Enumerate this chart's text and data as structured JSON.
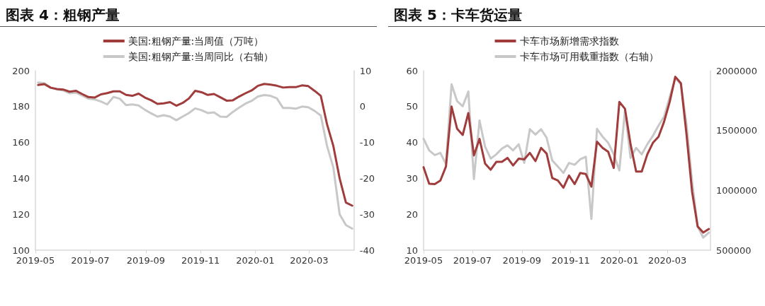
{
  "chart_data": [
    {
      "type": "line",
      "title": "图表 4：粗钢产量",
      "xlim": [
        "2019-05-01",
        "2020-04-20"
      ],
      "xticks": [
        "2019-05",
        "2019-07",
        "2019-09",
        "2019-11",
        "2020-01",
        "2020-03"
      ],
      "ylim": [
        100,
        200
      ],
      "yticks": [
        100,
        120,
        140,
        160,
        180,
        200
      ],
      "y2lim": [
        -40,
        10
      ],
      "y2ticks": [
        -40,
        -30,
        -20,
        -10,
        0,
        10
      ],
      "grid": false,
      "legend": "top",
      "marker": "none",
      "line_style": "solid",
      "x": [
        "2019-05-04",
        "2019-05-11",
        "2019-05-18",
        "2019-05-25",
        "2019-06-01",
        "2019-06-08",
        "2019-06-15",
        "2019-06-22",
        "2019-06-29",
        "2019-07-06",
        "2019-07-13",
        "2019-07-20",
        "2019-07-27",
        "2019-08-03",
        "2019-08-10",
        "2019-08-17",
        "2019-08-24",
        "2019-08-31",
        "2019-09-07",
        "2019-09-14",
        "2019-09-21",
        "2019-09-28",
        "2019-10-05",
        "2019-10-12",
        "2019-10-19",
        "2019-10-26",
        "2019-11-02",
        "2019-11-09",
        "2019-11-16",
        "2019-11-23",
        "2019-11-30",
        "2019-12-07",
        "2019-12-14",
        "2019-12-21",
        "2019-12-28",
        "2020-01-04",
        "2020-01-11",
        "2020-01-18",
        "2020-01-25",
        "2020-02-01",
        "2020-02-08",
        "2020-02-15",
        "2020-02-22",
        "2020-02-29",
        "2020-03-07",
        "2020-03-14",
        "2020-03-21",
        "2020-03-28",
        "2020-04-04",
        "2020-04-11",
        "2020-04-18"
      ],
      "series": [
        {
          "name": "美国:粗钢产量:当周值（万吨）",
          "color": "#a03c3c",
          "values": [
            192,
            192.5,
            190.5,
            189.8,
            189.5,
            188.3,
            188.8,
            187,
            185.3,
            185,
            186.8,
            187.5,
            188.5,
            188.5,
            186.5,
            186,
            187.2,
            185,
            183.5,
            181.5,
            181.8,
            182.5,
            180.5,
            182,
            184.5,
            188.8,
            188,
            186.5,
            187,
            185.2,
            183.3,
            183.5,
            185.6,
            187.4,
            189,
            191.6,
            192.6,
            192.2,
            191.6,
            190.6,
            190.8,
            190.8,
            191.8,
            191.4,
            188.8,
            186,
            170,
            158,
            140,
            126.5,
            124.8
          ]
        },
        {
          "name": "美国:粗钢产量:当周同比（右轴）",
          "color": "#c8c8c8",
          "axis": "y2",
          "values": [
            6.7,
            6.5,
            5.3,
            4.8,
            4.5,
            3.7,
            3.9,
            3.1,
            2.2,
            2,
            1.4,
            0.6,
            2.7,
            2.2,
            0.4,
            0.6,
            0.3,
            -0.9,
            -1.9,
            -2.8,
            -2.4,
            -2.8,
            -3.8,
            -2.8,
            -1.8,
            -0.5,
            -1,
            -1.8,
            -1.6,
            -2.8,
            -2.9,
            -1.5,
            -0.3,
            0.8,
            1.6,
            2.8,
            3.2,
            3,
            2.3,
            -0.4,
            -0.4,
            -0.6,
            0,
            -0.2,
            -1.2,
            -2.5,
            -11,
            -17,
            -30,
            -33,
            -34
          ]
        }
      ]
    },
    {
      "type": "line",
      "title": "图表 5：卡车货运量",
      "xlim": [
        "2019-05-01",
        "2020-04-24"
      ],
      "xticks": [
        "2019-05",
        "2019-07",
        "2019-09",
        "2019-11",
        "2020-01",
        "2020-03"
      ],
      "ylim": [
        10,
        60
      ],
      "yticks": [
        10,
        20,
        30,
        40,
        50,
        60
      ],
      "y2lim": [
        500000,
        2000000
      ],
      "y2ticks": [
        500000,
        1000000,
        1500000,
        2000000
      ],
      "grid": false,
      "legend": "top",
      "marker": "none",
      "line_style": "solid",
      "x": [
        "2019-05-01",
        "2019-05-08",
        "2019-05-15",
        "2019-05-22",
        "2019-05-29",
        "2019-06-05",
        "2019-06-12",
        "2019-06-19",
        "2019-06-26",
        "2019-07-03",
        "2019-07-10",
        "2019-07-17",
        "2019-07-24",
        "2019-07-31",
        "2019-08-07",
        "2019-08-14",
        "2019-08-21",
        "2019-08-28",
        "2019-09-04",
        "2019-09-11",
        "2019-09-18",
        "2019-09-25",
        "2019-10-02",
        "2019-10-09",
        "2019-10-16",
        "2019-10-23",
        "2019-10-30",
        "2019-11-06",
        "2019-11-13",
        "2019-11-20",
        "2019-11-27",
        "2019-12-04",
        "2019-12-11",
        "2019-12-18",
        "2019-12-25",
        "2020-01-01",
        "2020-01-08",
        "2020-01-15",
        "2020-01-22",
        "2020-01-29",
        "2020-02-05",
        "2020-02-12",
        "2020-02-19",
        "2020-02-26",
        "2020-03-04",
        "2020-03-11",
        "2020-03-18",
        "2020-03-25",
        "2020-04-01",
        "2020-04-08",
        "2020-04-15",
        "2020-04-22"
      ],
      "series": [
        {
          "name": "卡车市场新增需求指数",
          "color": "#a03c3c",
          "values": [
            33.1,
            28.5,
            28.4,
            29.4,
            33.3,
            50,
            43.8,
            42.1,
            48.2,
            36.4,
            41,
            34.1,
            32.4,
            34.6,
            34.6,
            35.7,
            33.6,
            35.5,
            35.3,
            37.1,
            34.8,
            38.5,
            36.9,
            30.1,
            29.4,
            27.4,
            30.8,
            28.4,
            31.5,
            31.2,
            27.7,
            40.2,
            38.5,
            37.4,
            32.9,
            51.3,
            49.4,
            39.5,
            31.9,
            31.9,
            36.7,
            39.9,
            41.6,
            45.8,
            51.3,
            58.3,
            56.5,
            42.3,
            26.3,
            16.6,
            14.9,
            15.9
          ]
        },
        {
          "name": "卡车市场可用载重指数（右轴）",
          "color": "#c8c8c8",
          "axis": "y2",
          "values": [
            1430000,
            1334000,
            1295000,
            1313000,
            1220000,
            1886000,
            1745000,
            1703000,
            1826000,
            1094000,
            1583000,
            1364000,
            1265000,
            1301000,
            1349000,
            1376000,
            1334000,
            1385000,
            1229000,
            1511000,
            1466000,
            1511000,
            1439000,
            1250000,
            1199000,
            1145000,
            1229000,
            1214000,
            1259000,
            1280000,
            761000,
            1514000,
            1448000,
            1397000,
            1301000,
            1166000,
            1667000,
            1271000,
            1355000,
            1301000,
            1385000,
            1457000,
            1541000,
            1616000,
            1781000,
            1937000,
            1886000,
            1553000,
            1073000,
            698000,
            605000,
            647000
          ]
        }
      ]
    }
  ]
}
